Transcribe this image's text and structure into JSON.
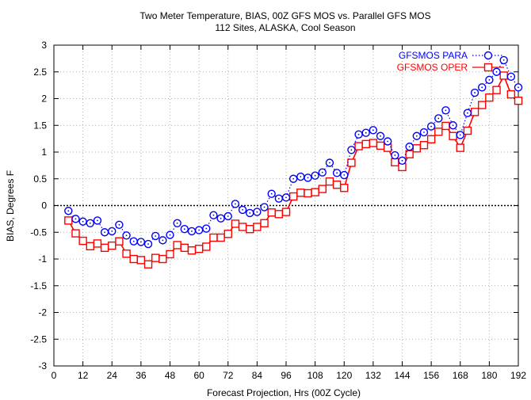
{
  "chart_data": {
    "type": "line",
    "title": "Two Meter Temperature, BIAS, 00Z GFS MOS vs. Parallel GFS MOS",
    "subtitle": "112 Sites, ALASKA, Cool Season",
    "xlabel": "Forecast Projection, Hrs (00Z Cycle)",
    "ylabel": "BIAS, Degrees F",
    "xlim": [
      0,
      192
    ],
    "ylim": [
      -3,
      3
    ],
    "xticks": [
      0,
      12,
      24,
      36,
      48,
      60,
      72,
      84,
      96,
      108,
      120,
      132,
      144,
      156,
      168,
      180,
      192
    ],
    "yticks": [
      -3,
      -2.5,
      -2,
      -1.5,
      -1,
      -0.5,
      0,
      0.5,
      1,
      1.5,
      2,
      2.5,
      3
    ],
    "grid": true,
    "legend_position": "top-right",
    "reference_line": 0,
    "x": [
      6,
      9,
      12,
      15,
      18,
      21,
      24,
      27,
      30,
      33,
      36,
      39,
      42,
      45,
      48,
      51,
      54,
      57,
      60,
      63,
      66,
      69,
      72,
      75,
      78,
      81,
      84,
      87,
      90,
      93,
      96,
      99,
      102,
      105,
      108,
      111,
      114,
      117,
      120,
      123,
      126,
      129,
      132,
      135,
      138,
      141,
      144,
      147,
      150,
      153,
      156,
      159,
      162,
      165,
      168,
      171,
      174,
      177,
      180,
      183,
      186,
      189,
      192
    ],
    "series": [
      {
        "name": "GFSMOS PARA",
        "color": "#0000ff",
        "marker": "circle",
        "line_style": "dotted",
        "values": [
          -0.1,
          -0.25,
          -0.3,
          -0.33,
          -0.28,
          -0.5,
          -0.48,
          -0.36,
          -0.56,
          -0.67,
          -0.68,
          -0.72,
          -0.57,
          -0.65,
          -0.55,
          -0.33,
          -0.44,
          -0.48,
          -0.46,
          -0.43,
          -0.18,
          -0.24,
          -0.2,
          0.03,
          -0.08,
          -0.14,
          -0.12,
          -0.03,
          0.22,
          0.13,
          0.15,
          0.5,
          0.54,
          0.52,
          0.56,
          0.62,
          0.8,
          0.61,
          0.57,
          1.04,
          1.33,
          1.36,
          1.41,
          1.3,
          1.2,
          0.94,
          0.84,
          1.1,
          1.3,
          1.37,
          1.48,
          1.63,
          1.78,
          1.5,
          1.32,
          1.73,
          2.11,
          2.21,
          2.35,
          2.5,
          2.72,
          2.41,
          2.21
        ]
      },
      {
        "name": "GFSMOS OPER",
        "color": "#ff0000",
        "marker": "square",
        "line_style": "solid",
        "values": [
          -0.28,
          -0.52,
          -0.66,
          -0.76,
          -0.71,
          -0.79,
          -0.75,
          -0.67,
          -0.9,
          -1.0,
          -1.02,
          -1.1,
          -0.98,
          -1.0,
          -0.91,
          -0.74,
          -0.79,
          -0.84,
          -0.81,
          -0.77,
          -0.6,
          -0.6,
          -0.53,
          -0.34,
          -0.4,
          -0.44,
          -0.4,
          -0.33,
          -0.13,
          -0.16,
          -0.12,
          0.17,
          0.24,
          0.23,
          0.25,
          0.31,
          0.45,
          0.39,
          0.33,
          0.8,
          1.11,
          1.15,
          1.17,
          1.12,
          1.08,
          0.81,
          0.72,
          0.96,
          1.07,
          1.13,
          1.24,
          1.38,
          1.49,
          1.3,
          1.08,
          1.4,
          1.75,
          1.88,
          2.02,
          2.16,
          2.43,
          2.08,
          1.96
        ]
      }
    ]
  }
}
